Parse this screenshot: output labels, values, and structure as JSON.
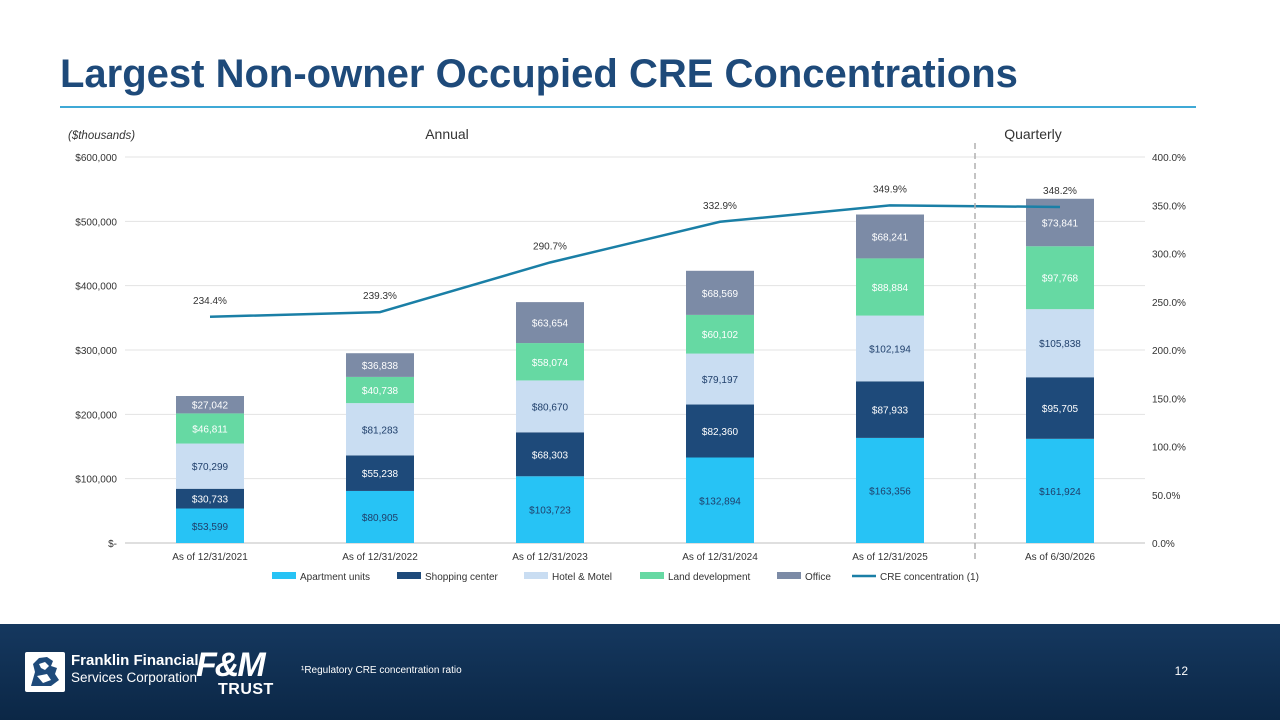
{
  "slide": {
    "title": "Largest Non-owner Occupied CRE Concentrations",
    "units_note": "($thousands)",
    "annual_label": "Annual",
    "quarterly_label": "Quarterly",
    "footnote": "¹Regulatory CRE concentration ratio",
    "page_number": "12"
  },
  "footer": {
    "company_line1": "Franklin Financial",
    "company_line2": "Services Corporation",
    "brand_mark": "F&M",
    "brand_sub": "TRUST"
  },
  "chart_data": {
    "type": "bar",
    "stacked": true,
    "categories": [
      "As of 12/31/2021",
      "As of 12/31/2022",
      "As of 12/31/2023",
      "As of 12/31/2024",
      "As of 12/31/2025",
      "As of 6/30/2026"
    ],
    "series": [
      {
        "name": "Apartment units",
        "color": "#27c3f5",
        "label_color": "#1f3f6b",
        "values": [
          53599,
          80905,
          103723,
          132894,
          163356,
          161924
        ],
        "labels": [
          "$53,599",
          "$80,905",
          "$103,723",
          "$132,894",
          "$163,356",
          "$161,924"
        ]
      },
      {
        "name": "Shopping center",
        "color": "#1e4a7a",
        "label_color": "#ffffff",
        "values": [
          30733,
          55238,
          68303,
          82360,
          87933,
          95705
        ],
        "labels": [
          "$30,733",
          "$55,238",
          "$68,303",
          "$82,360",
          "$87,933",
          "$95,705"
        ]
      },
      {
        "name": "Hotel & Motel",
        "color": "#c9ddf2",
        "label_color": "#1f3f6b",
        "values": [
          70299,
          81283,
          80670,
          79197,
          102194,
          105838
        ],
        "labels": [
          "$70,299",
          "$81,283",
          "$80,670",
          "$79,197",
          "$102,194",
          "$105,838"
        ]
      },
      {
        "name": "Land development",
        "color": "#66d9a3",
        "label_color": "#ffffff",
        "values": [
          46811,
          40738,
          58074,
          60102,
          88884,
          97768
        ],
        "labels": [
          "$46,811",
          "$40,738",
          "$58,074",
          "$60,102",
          "$88,884",
          "$97,768"
        ]
      },
      {
        "name": "Office",
        "color": "#7c8ba6",
        "label_color": "#ffffff",
        "values": [
          27042,
          36838,
          63654,
          68569,
          68241,
          73841
        ],
        "labels": [
          "$27,042",
          "$36,838",
          "$63,654",
          "$68,569",
          "$68,241",
          "$73,841"
        ]
      }
    ],
    "line_series": {
      "name": "CRE concentration (1)",
      "color": "#1a7fa6",
      "values": [
        234.4,
        239.3,
        290.7,
        332.9,
        349.9,
        348.2
      ],
      "labels": [
        "234.4%",
        "239.3%",
        "290.7%",
        "332.9%",
        "349.9%",
        "348.2%"
      ],
      "axis": "right"
    },
    "y_left": {
      "min": 0,
      "max": 600000,
      "ticks": [
        0,
        100000,
        200000,
        300000,
        400000,
        500000,
        600000
      ],
      "tick_labels": [
        "$-",
        "$100,000",
        "$200,000",
        "$300,000",
        "$400,000",
        "$500,000",
        "$600,000"
      ]
    },
    "y_right": {
      "min": 0,
      "max": 400,
      "ticks": [
        0,
        50,
        100,
        150,
        200,
        250,
        300,
        350,
        400
      ],
      "tick_labels": [
        "0.0%",
        "50.0%",
        "100.0%",
        "150.0%",
        "200.0%",
        "250.0%",
        "300.0%",
        "350.0%",
        "400.0%"
      ]
    },
    "grid": true,
    "legend_position": "bottom",
    "divider_between_categories": [
      4,
      5
    ]
  }
}
